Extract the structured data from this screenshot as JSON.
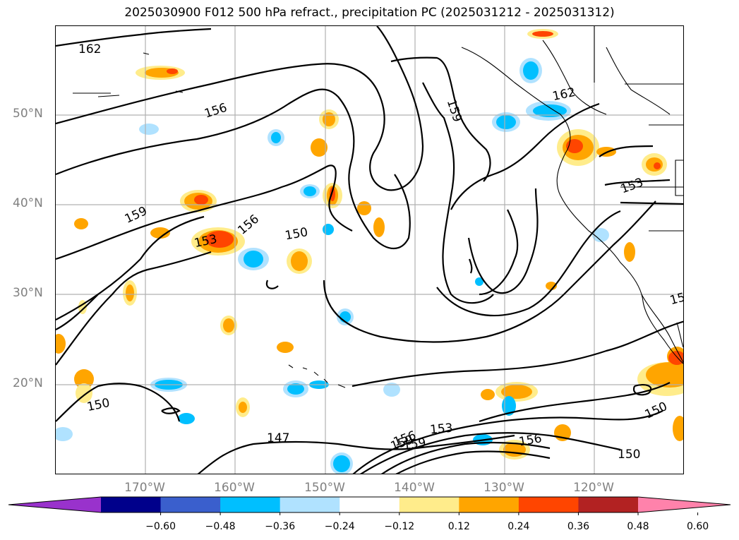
{
  "title": "2025030900 F012 500 hPa refract., precipitation PC (2025031212 - 2025031312)",
  "chart_data": {
    "type": "contour_map",
    "title": "2025030900 F012 500 hPa refract., precipitation PC (2025031212 - 2025031312)",
    "projection": "PlateCarree",
    "lon_range": [
      -180,
      -110
    ],
    "lat_range": [
      10,
      60
    ],
    "lat_ticks": [
      "50°N",
      "40°N",
      "30°N",
      "20°N"
    ],
    "lon_ticks": [
      "170°W",
      "160°W",
      "150°W",
      "140°W",
      "130°W",
      "120°W"
    ],
    "grid": true,
    "refractivity_contours": {
      "levels": [
        147,
        150,
        153,
        156,
        159,
        162
      ],
      "labels": [
        {
          "text": "162"
        },
        {
          "text": "156"
        },
        {
          "text": "159"
        },
        {
          "text": "162"
        },
        {
          "text": "153"
        },
        {
          "text": "159"
        },
        {
          "text": "156"
        },
        {
          "text": "153"
        },
        {
          "text": "150"
        },
        {
          "text": "150"
        },
        {
          "text": "147"
        },
        {
          "text": "159"
        },
        {
          "text": "153"
        },
        {
          "text": "156"
        },
        {
          "text": "159"
        },
        {
          "text": "156"
        },
        {
          "text": "150"
        },
        {
          "text": "150"
        },
        {
          "text": "15"
        }
      ]
    },
    "precip_colorbar": {
      "extend": "both",
      "ticks": [
        "−0.60",
        "−0.48",
        "−0.36",
        "−0.24",
        "−0.12",
        "0.12",
        "0.24",
        "0.36",
        "0.48",
        "0.60"
      ],
      "colors": [
        "#9932cc",
        "#00008b",
        "#3a5fcd",
        "#00bfff",
        "#b0e2ff",
        "#ffffff",
        "#ffec8b",
        "#ffa500",
        "#ff4500",
        "#b22222",
        "#ff82ab"
      ]
    }
  }
}
